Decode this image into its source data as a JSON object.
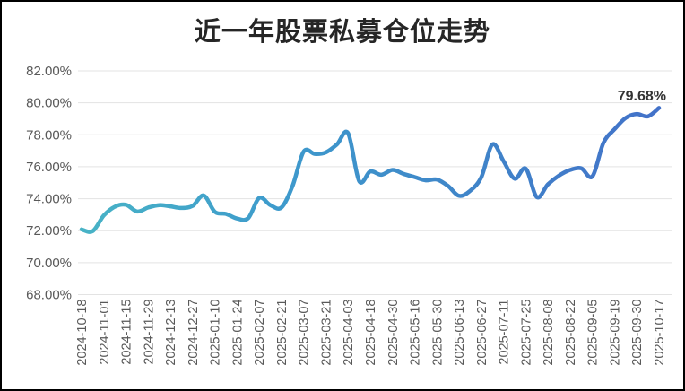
{
  "chart_data": {
    "type": "line",
    "title": "近一年股票私募仓位走势",
    "end_label": "79.68%",
    "y_axis": {
      "min": 68,
      "max": 82,
      "step": 2,
      "tick_labels": [
        "82.00%",
        "80.00%",
        "78.00%",
        "76.00%",
        "74.00%",
        "72.00%",
        "70.00%",
        "68.00%"
      ]
    },
    "x_axis": {
      "label_every_n_points": 2,
      "tick_labels": [
        "2024-10-18",
        "2024-11-01",
        "2024-11-15",
        "2024-11-29",
        "2024-12-13",
        "2024-12-27",
        "2025-01-10",
        "2025-01-24",
        "2025-02-07",
        "2025-02-21",
        "2025-03-07",
        "2025-03-21",
        "2025-04-03",
        "2025-04-18",
        "2025-04-30",
        "2025-05-16",
        "2025-05-30",
        "2025-06-13",
        "2025-06-27",
        "2025-07-11",
        "2025-07-25",
        "2025-08-08",
        "2025-08-22",
        "2025-09-05",
        "2025-09-19",
        "2025-09-30",
        "2025-10-17"
      ]
    },
    "values": [
      72.08,
      71.97,
      72.95,
      73.5,
      73.62,
      73.2,
      73.45,
      73.6,
      73.52,
      73.42,
      73.55,
      74.2,
      73.18,
      73.05,
      72.76,
      72.78,
      74.05,
      73.6,
      73.45,
      74.8,
      76.95,
      76.8,
      76.9,
      77.4,
      78.1,
      75.1,
      75.7,
      75.5,
      75.8,
      75.55,
      75.35,
      75.15,
      75.2,
      74.8,
      74.18,
      74.5,
      75.35,
      77.4,
      76.35,
      75.25,
      75.88,
      74.1,
      74.9,
      75.45,
      75.8,
      75.9,
      75.4,
      77.5,
      78.35,
      79.05,
      79.3,
      79.15,
      79.68
    ],
    "grid": "horizontal",
    "legend": "none",
    "colors": {
      "line_gradient": [
        "#48B3C6",
        "#3E9BCC",
        "#3F85C9",
        "#4372C9"
      ],
      "gridline": "#e3e3e3",
      "axis_label": "#595959",
      "title": "#262626",
      "end_label": "#333333",
      "background": "#ffffff",
      "frame_border": "#000000"
    }
  }
}
